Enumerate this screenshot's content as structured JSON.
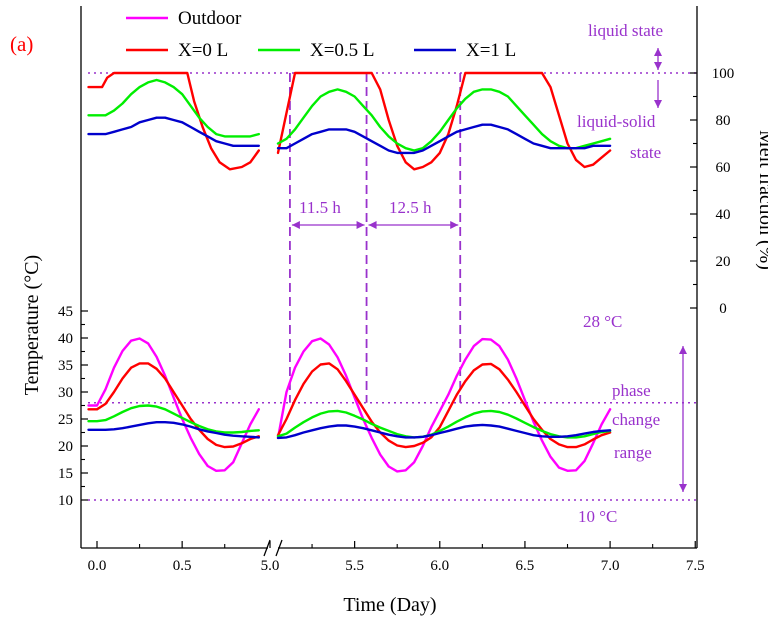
{
  "chart_data": {
    "type": "line",
    "panel_label": "(a)",
    "xlabel": "Time (Day)",
    "ylabel_left": "Temperature (°C)",
    "ylabel_right": "Melt fraction (%)",
    "x_axis_break": [
      0.95,
      5.05
    ],
    "x_tick_labels": [
      "0.0",
      "0.5",
      "5.0",
      "5.5",
      "6.0",
      "6.5",
      "7.0",
      "7.5"
    ],
    "y_left_tick_labels": [
      "10",
      "15",
      "20",
      "25",
      "30",
      "35",
      "40",
      "45"
    ],
    "y_left_ylim": [
      7,
      47
    ],
    "y_right_tick_labels": [
      "0",
      "20",
      "40",
      "60",
      "80",
      "100"
    ],
    "y_right_ylim": [
      -20,
      110
    ],
    "colors": {
      "Outdoor": "#ff00ff",
      "X=0 L": "#ff0000",
      "X=0.5 L": "#00ee00",
      "X=1 L": "#0000cc",
      "annotation": "#9932CC"
    },
    "legend": [
      "Outdoor",
      "X=0 L",
      "X=0.5 L",
      "X=1 L"
    ],
    "legend_placement": "top",
    "temperature_series": [
      {
        "name": "Outdoor",
        "x": [
          -0.05,
          0.0,
          0.05,
          0.1,
          0.15,
          0.2,
          0.25,
          0.3,
          0.35,
          0.4,
          0.45,
          0.5,
          0.55,
          0.6,
          0.65,
          0.7,
          0.75,
          0.8,
          0.85,
          0.9,
          0.95,
          5.05,
          5.1,
          5.15,
          5.2,
          5.25,
          5.3,
          5.35,
          5.4,
          5.45,
          5.5,
          5.55,
          5.6,
          5.65,
          5.7,
          5.75,
          5.8,
          5.85,
          5.9,
          5.95,
          6.0,
          6.05,
          6.1,
          6.15,
          6.2,
          6.25,
          6.3,
          6.35,
          6.4,
          6.45,
          6.5,
          6.55,
          6.6,
          6.65,
          6.7,
          6.75,
          6.8,
          6.85,
          6.9,
          6.95,
          7.0
        ],
        "y": [
          27.5,
          27.5,
          30.5,
          34.5,
          37.6,
          39.5,
          39.9,
          39.0,
          36.5,
          33.0,
          29.0,
          25.0,
          21.5,
          18.5,
          16.3,
          15.4,
          15.5,
          17.0,
          20.5,
          24.0,
          26.8,
          21.5,
          30.0,
          34.5,
          37.5,
          39.4,
          39.9,
          38.8,
          36.4,
          33.0,
          29.0,
          25.0,
          21.5,
          18.4,
          16.2,
          15.3,
          15.5,
          17.0,
          20.0,
          23.5,
          26.5,
          29.5,
          33.0,
          36.0,
          38.5,
          39.8,
          39.7,
          38.5,
          36.0,
          32.5,
          28.5,
          24.5,
          21.0,
          18.0,
          16.0,
          15.4,
          15.5,
          17.2,
          20.5,
          24.0,
          26.8
        ]
      },
      {
        "name": "X=0 L",
        "x": [
          -0.05,
          0.0,
          0.05,
          0.1,
          0.15,
          0.2,
          0.25,
          0.3,
          0.35,
          0.4,
          0.45,
          0.5,
          0.55,
          0.6,
          0.65,
          0.7,
          0.75,
          0.8,
          0.85,
          0.9,
          0.95,
          5.05,
          5.1,
          5.15,
          5.2,
          5.25,
          5.3,
          5.35,
          5.4,
          5.45,
          5.5,
          5.55,
          5.6,
          5.65,
          5.7,
          5.75,
          5.8,
          5.85,
          5.9,
          5.95,
          6.0,
          6.05,
          6.1,
          6.15,
          6.2,
          6.25,
          6.3,
          6.35,
          6.4,
          6.45,
          6.5,
          6.55,
          6.6,
          6.65,
          6.7,
          6.75,
          6.8,
          6.85,
          6.9,
          6.95,
          7.0
        ],
        "y": [
          26.8,
          26.8,
          27.8,
          30.0,
          32.5,
          34.5,
          35.3,
          35.3,
          34.3,
          32.5,
          30.0,
          27.5,
          25.0,
          23.0,
          21.3,
          20.2,
          19.8,
          19.9,
          20.5,
          21.3,
          21.8,
          22.0,
          25.0,
          28.5,
          31.5,
          33.8,
          35.1,
          35.3,
          34.2,
          32.0,
          29.5,
          27.0,
          24.5,
          22.5,
          21.0,
          20.1,
          19.8,
          20.0,
          20.6,
          21.6,
          23.5,
          26.5,
          29.5,
          32.0,
          34.0,
          35.1,
          35.2,
          34.2,
          32.3,
          30.0,
          27.5,
          25.0,
          23.0,
          21.3,
          20.3,
          19.8,
          19.8,
          20.3,
          21.2,
          22.0,
          22.5
        ]
      },
      {
        "name": "X=0.5 L",
        "x": [
          -0.05,
          0.0,
          0.05,
          0.1,
          0.15,
          0.2,
          0.25,
          0.3,
          0.35,
          0.4,
          0.45,
          0.5,
          0.55,
          0.6,
          0.65,
          0.7,
          0.75,
          0.8,
          0.85,
          0.9,
          0.95,
          5.05,
          5.1,
          5.15,
          5.2,
          5.25,
          5.3,
          5.35,
          5.4,
          5.45,
          5.5,
          5.55,
          5.6,
          5.65,
          5.7,
          5.75,
          5.8,
          5.85,
          5.9,
          5.95,
          6.0,
          6.05,
          6.1,
          6.15,
          6.2,
          6.25,
          6.3,
          6.35,
          6.4,
          6.45,
          6.5,
          6.55,
          6.6,
          6.65,
          6.7,
          6.75,
          6.8,
          6.85,
          6.9,
          6.95,
          7.0
        ],
        "y": [
          24.6,
          24.6,
          24.8,
          25.5,
          26.3,
          27.0,
          27.4,
          27.5,
          27.3,
          26.8,
          26.0,
          25.2,
          24.4,
          23.7,
          23.1,
          22.7,
          22.5,
          22.5,
          22.6,
          22.8,
          22.9,
          21.8,
          22.3,
          23.4,
          24.4,
          25.3,
          26.0,
          26.4,
          26.5,
          26.2,
          25.6,
          24.9,
          24.1,
          23.4,
          22.8,
          22.2,
          21.8,
          21.6,
          21.7,
          22.1,
          22.8,
          23.6,
          24.5,
          25.3,
          26.0,
          26.4,
          26.5,
          26.3,
          25.8,
          25.1,
          24.3,
          23.5,
          22.8,
          22.2,
          21.8,
          21.6,
          21.6,
          21.8,
          22.2,
          22.6,
          22.8
        ]
      },
      {
        "name": "X=1 L",
        "x": [
          -0.05,
          0.0,
          0.05,
          0.1,
          0.15,
          0.2,
          0.25,
          0.3,
          0.35,
          0.4,
          0.45,
          0.5,
          0.55,
          0.6,
          0.65,
          0.7,
          0.75,
          0.8,
          0.85,
          0.9,
          0.95,
          5.05,
          5.1,
          5.15,
          5.2,
          5.25,
          5.3,
          5.35,
          5.4,
          5.45,
          5.5,
          5.55,
          5.6,
          5.65,
          5.7,
          5.75,
          5.8,
          5.85,
          5.9,
          5.95,
          6.0,
          6.05,
          6.1,
          6.15,
          6.2,
          6.25,
          6.3,
          6.35,
          6.4,
          6.45,
          6.5,
          6.55,
          6.6,
          6.65,
          6.7,
          6.75,
          6.8,
          6.85,
          6.9,
          6.95,
          7.0
        ],
        "y": [
          23.0,
          23.0,
          23.0,
          23.1,
          23.3,
          23.6,
          23.9,
          24.2,
          24.4,
          24.4,
          24.3,
          24.0,
          23.6,
          23.1,
          22.7,
          22.4,
          22.1,
          21.9,
          21.8,
          21.7,
          21.6,
          21.5,
          21.6,
          22.0,
          22.5,
          22.9,
          23.3,
          23.6,
          23.8,
          23.8,
          23.6,
          23.3,
          22.9,
          22.5,
          22.1,
          21.8,
          21.6,
          21.6,
          21.7,
          22.0,
          22.4,
          22.8,
          23.2,
          23.6,
          23.8,
          23.9,
          23.8,
          23.6,
          23.2,
          22.8,
          22.4,
          22.0,
          21.8,
          21.7,
          21.7,
          21.8,
          22.0,
          22.3,
          22.6,
          22.8,
          22.9
        ]
      }
    ],
    "melt_fraction_series": [
      {
        "name": "X=0 L",
        "x": [
          -0.05,
          0.0,
          0.03,
          0.06,
          0.1,
          0.15,
          0.2,
          0.25,
          0.3,
          0.35,
          0.4,
          0.45,
          0.5,
          0.53,
          0.57,
          0.62,
          0.67,
          0.72,
          0.78,
          0.85,
          0.9,
          0.95,
          5.05,
          5.1,
          5.15,
          5.2,
          5.25,
          5.3,
          5.35,
          5.4,
          5.45,
          5.5,
          5.55,
          5.6,
          5.65,
          5.7,
          5.75,
          5.8,
          5.85,
          5.9,
          5.95,
          6.0,
          6.05,
          6.1,
          6.15,
          6.2,
          6.25,
          6.3,
          6.35,
          6.4,
          6.45,
          6.5,
          6.55,
          6.6,
          6.65,
          6.7,
          6.75,
          6.8,
          6.85,
          6.9,
          6.95,
          7.0
        ],
        "y": [
          94,
          94,
          94,
          98,
          100,
          100,
          100,
          100,
          100,
          100,
          100,
          100,
          100,
          100,
          88,
          77,
          68,
          62,
          59,
          60,
          62,
          67,
          66,
          83,
          100,
          100,
          100,
          100,
          100,
          100,
          100,
          100,
          100,
          100,
          93,
          80,
          69,
          62,
          59,
          60,
          62,
          66,
          74,
          86,
          100,
          100,
          100,
          100,
          100,
          100,
          100,
          100,
          100,
          100,
          94,
          82,
          70,
          63,
          60,
          61,
          64,
          67
        ]
      },
      {
        "name": "X=0.5 L",
        "x": [
          -0.05,
          0.0,
          0.05,
          0.1,
          0.15,
          0.2,
          0.25,
          0.3,
          0.35,
          0.4,
          0.45,
          0.5,
          0.55,
          0.6,
          0.65,
          0.7,
          0.75,
          0.8,
          0.85,
          0.9,
          0.95,
          5.05,
          5.1,
          5.15,
          5.2,
          5.25,
          5.3,
          5.35,
          5.4,
          5.45,
          5.5,
          5.55,
          5.6,
          5.65,
          5.7,
          5.75,
          5.8,
          5.85,
          5.9,
          5.95,
          6.0,
          6.05,
          6.1,
          6.15,
          6.2,
          6.25,
          6.3,
          6.35,
          6.4,
          6.45,
          6.5,
          6.55,
          6.6,
          6.65,
          6.7,
          6.75,
          6.8,
          6.85,
          6.9,
          6.95,
          7.0
        ],
        "y": [
          82,
          82,
          82,
          84,
          87,
          91,
          94,
          96,
          97,
          96,
          94,
          91,
          86,
          81,
          77,
          74,
          73,
          73,
          73,
          73,
          74,
          70,
          72,
          76,
          81,
          86,
          90,
          92,
          93,
          92,
          90,
          86,
          82,
          77,
          73,
          70,
          68,
          67,
          68,
          71,
          75,
          80,
          85,
          89,
          92,
          93,
          93,
          92,
          90,
          86,
          82,
          78,
          74,
          71,
          69,
          68,
          68,
          69,
          70,
          71,
          72
        ]
      },
      {
        "name": "X=1 L",
        "x": [
          -0.05,
          0.0,
          0.05,
          0.1,
          0.15,
          0.2,
          0.25,
          0.3,
          0.35,
          0.4,
          0.45,
          0.5,
          0.55,
          0.6,
          0.65,
          0.7,
          0.75,
          0.8,
          0.85,
          0.9,
          0.95,
          5.05,
          5.1,
          5.15,
          5.2,
          5.25,
          5.3,
          5.35,
          5.4,
          5.45,
          5.5,
          5.55,
          5.6,
          5.65,
          5.7,
          5.75,
          5.8,
          5.85,
          5.9,
          5.95,
          6.0,
          6.05,
          6.1,
          6.15,
          6.2,
          6.25,
          6.3,
          6.35,
          6.4,
          6.45,
          6.5,
          6.55,
          6.6,
          6.65,
          6.7,
          6.75,
          6.8,
          6.85,
          6.9,
          6.95,
          7.0
        ],
        "y": [
          74,
          74,
          74,
          75,
          76,
          77,
          79,
          80,
          81,
          81,
          80,
          79,
          77,
          75,
          73,
          71,
          70,
          69,
          69,
          69,
          69,
          68,
          68,
          70,
          72,
          74,
          75,
          76,
          76,
          76,
          75,
          73,
          71,
          69,
          67,
          66,
          66,
          66,
          67,
          69,
          71,
          73,
          75,
          76,
          77,
          78,
          78,
          77,
          76,
          74,
          72,
          70,
          69,
          68,
          68,
          68,
          68,
          68,
          69,
          69,
          69
        ]
      }
    ],
    "reference_lines": {
      "temp_upper": 28,
      "temp_lower": 10,
      "melt_full": 100
    },
    "vertical_markers": [
      5.12,
      5.57,
      6.12
    ],
    "annotations": {
      "liquid_state": "liquid state",
      "liquid_solid_1": "liquid-solid",
      "liquid_solid_2": "state",
      "temp_28": "28 °C",
      "temp_10": "10 °C",
      "phase_1": "phase",
      "phase_2": "change",
      "phase_3": "range",
      "span_1": "11.5 h",
      "span_2": "12.5 h"
    }
  }
}
